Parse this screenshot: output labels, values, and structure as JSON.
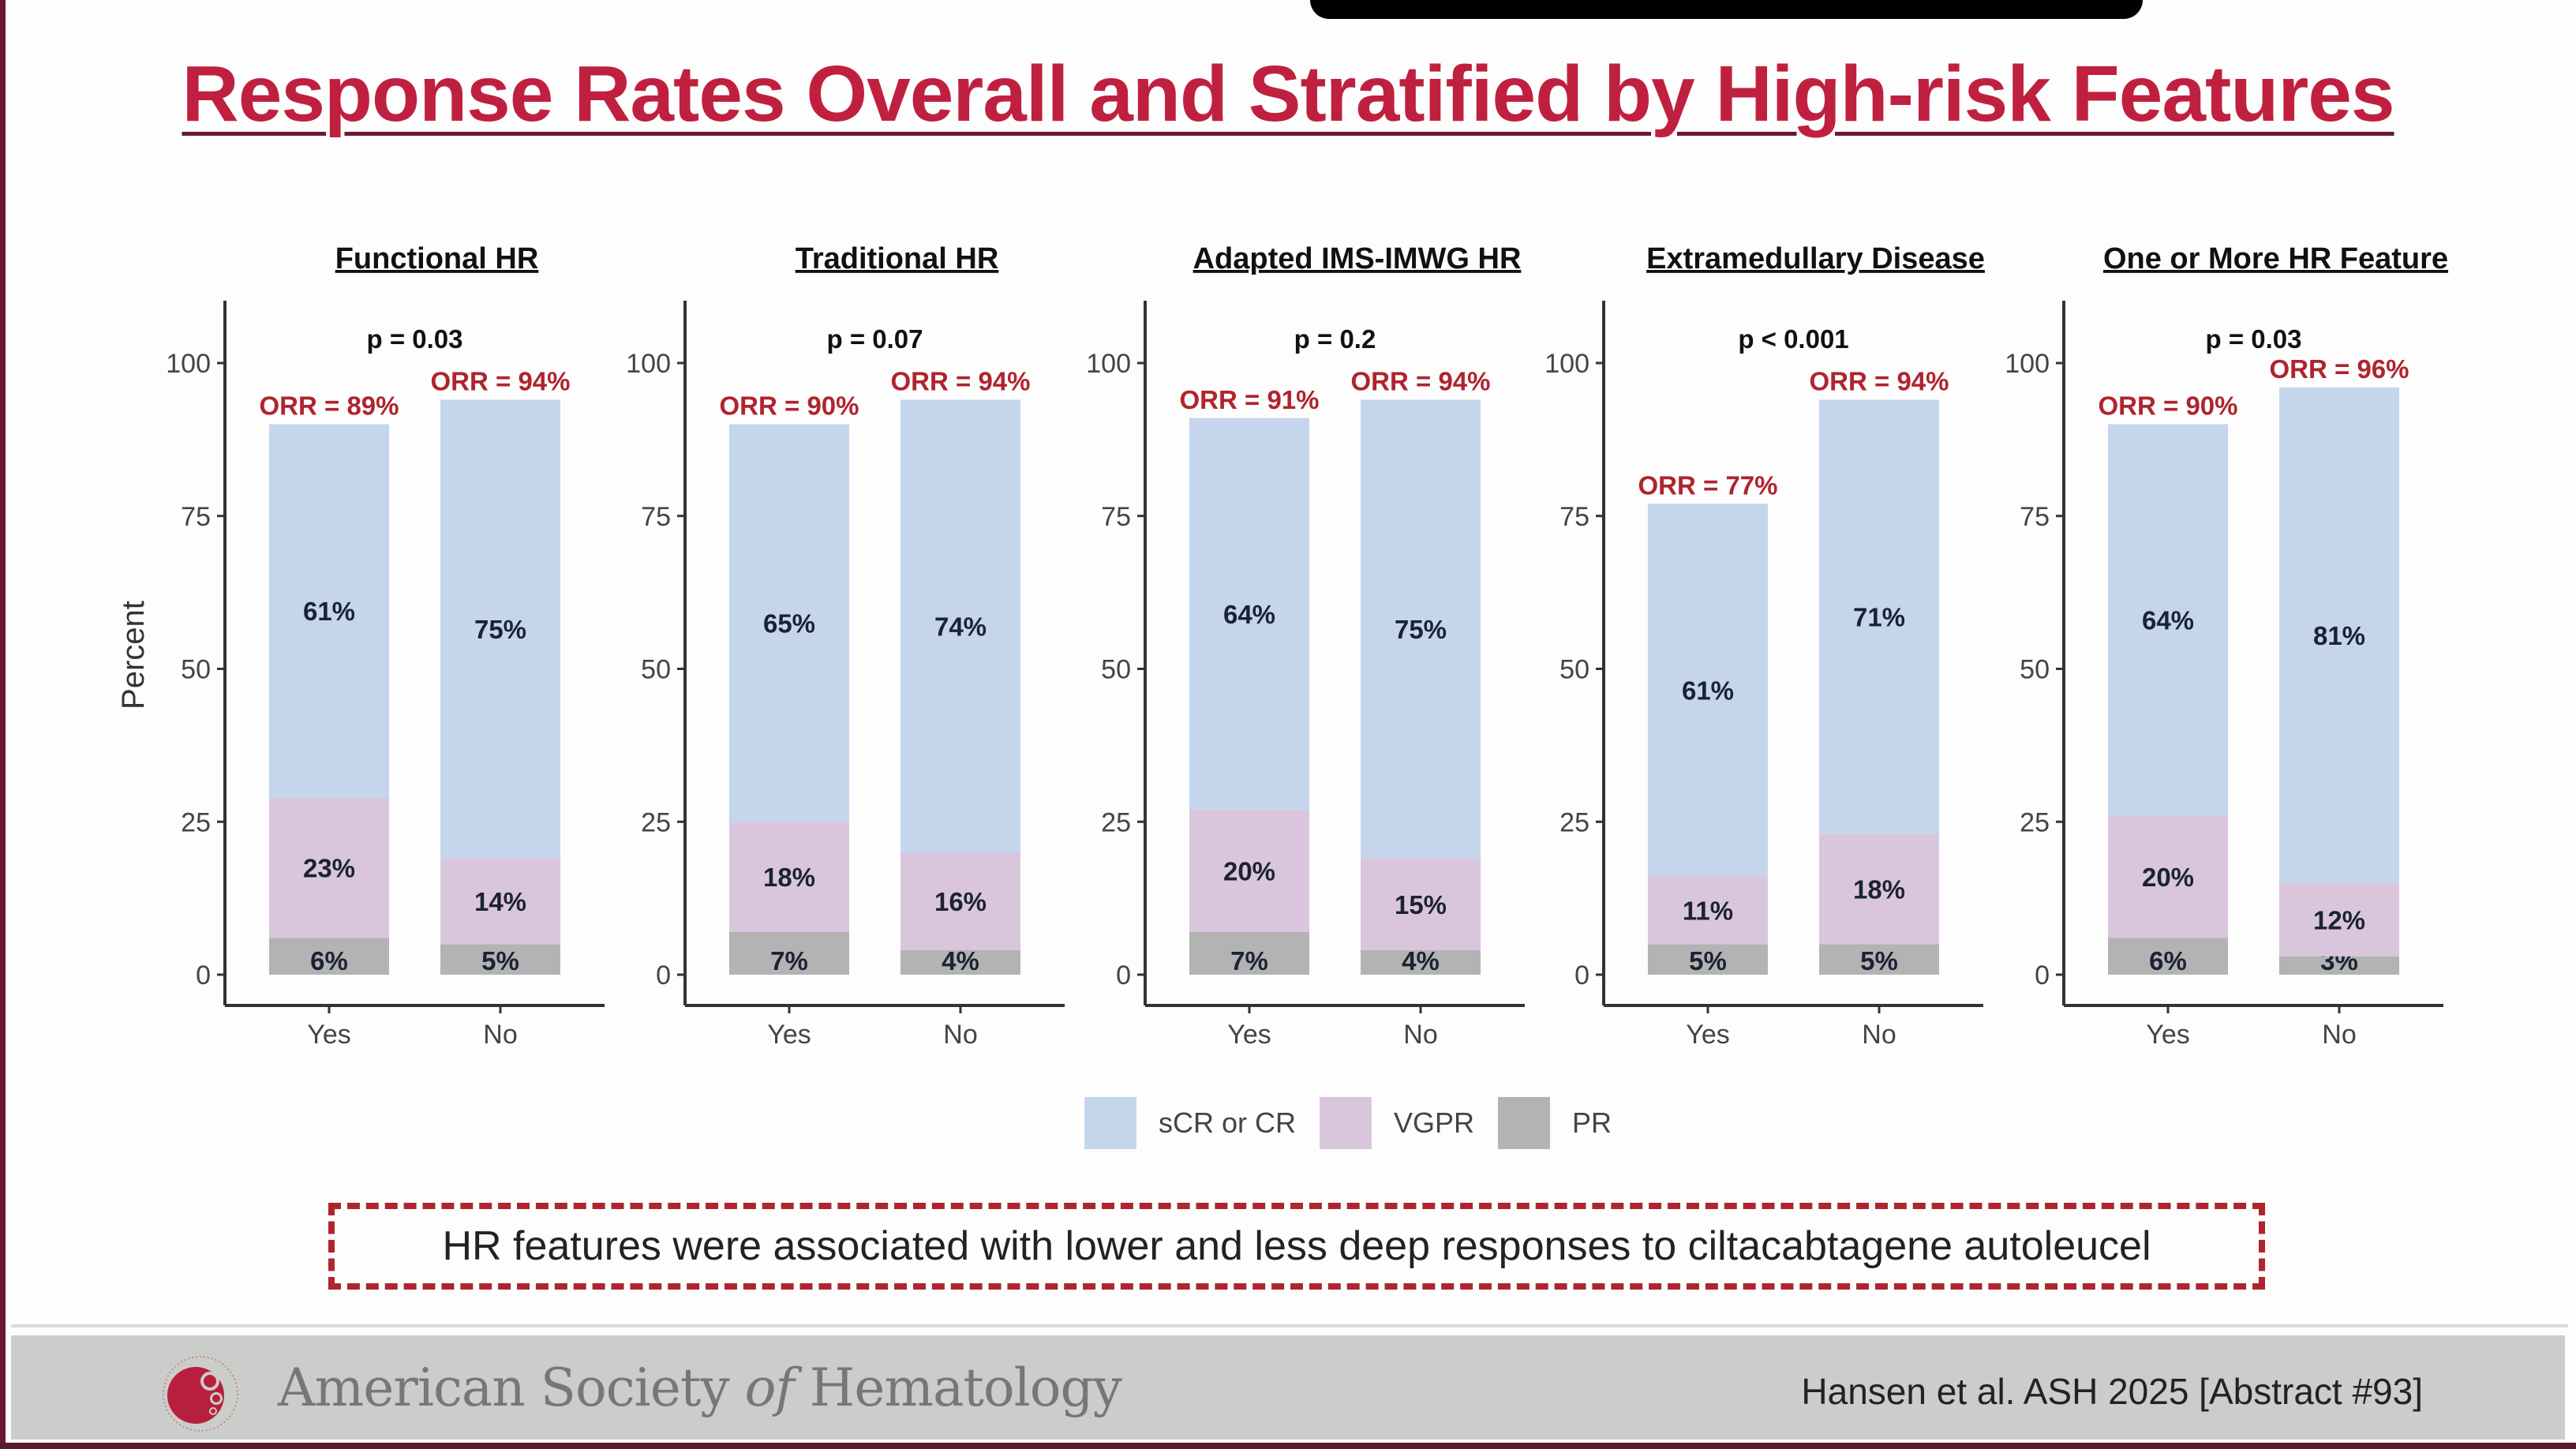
{
  "slide": {
    "title": "Response Rates Overall and Stratified by High-risk Features",
    "callout": "HR features were associated with lower and less deep responses to ciltacabtagene autoleucel",
    "footer": {
      "org_name_part1": "American Society ",
      "org_name_italic": "of",
      "org_name_part2": " Hematology",
      "logo_icon": "ash-logo-icon",
      "citation": "Hansen et al. ASH 2025 [Abstract #93]"
    },
    "colors": {
      "title": "#c0203f",
      "orr_label": "#b0242e",
      "callout_border": "#b0242e",
      "sCR_or_CR": "#c5d5ec",
      "VGPR": "#d9c6dd",
      "PR": "#b2b3b2"
    }
  },
  "chart_data": {
    "type": "bar",
    "stacked": true,
    "ylabel": "Percent",
    "ylim": [
      0,
      100
    ],
    "yticks": [
      0,
      25,
      50,
      75,
      100
    ],
    "categories": [
      "Yes",
      "No"
    ],
    "legend": {
      "position": "bottom",
      "entries": [
        "sCR or CR",
        "VGPR",
        "PR"
      ]
    },
    "series_order_bottom_to_top": [
      "PR",
      "VGPR",
      "sCR or CR"
    ],
    "panels": [
      {
        "title": "Functional HR",
        "p_value": "p = 0.03",
        "groups": [
          {
            "category": "Yes",
            "orr_label": "ORR = 89%",
            "orr": 89,
            "PR": 6,
            "VGPR": 23,
            "sCR or CR": 61
          },
          {
            "category": "No",
            "orr_label": "ORR = 94%",
            "orr": 94,
            "PR": 5,
            "VGPR": 14,
            "sCR or CR": 75
          }
        ]
      },
      {
        "title": "Traditional HR",
        "p_value": "p = 0.07",
        "groups": [
          {
            "category": "Yes",
            "orr_label": "ORR = 90%",
            "orr": 90,
            "PR": 7,
            "VGPR": 18,
            "sCR or CR": 65
          },
          {
            "category": "No",
            "orr_label": "ORR = 94%",
            "orr": 94,
            "PR": 4,
            "VGPR": 16,
            "sCR or CR": 74
          }
        ]
      },
      {
        "title": "Adapted IMS-IMWG HR",
        "p_value": "p = 0.2",
        "groups": [
          {
            "category": "Yes",
            "orr_label": "ORR = 91%",
            "orr": 91,
            "PR": 7,
            "VGPR": 20,
            "sCR or CR": 64
          },
          {
            "category": "No",
            "orr_label": "ORR = 94%",
            "orr": 94,
            "PR": 4,
            "VGPR": 15,
            "sCR or CR": 75
          }
        ]
      },
      {
        "title": "Extramedullary Disease",
        "p_value": "p < 0.001",
        "groups": [
          {
            "category": "Yes",
            "orr_label": "ORR = 77%",
            "orr": 77,
            "PR": 5,
            "VGPR": 11,
            "sCR or CR": 61
          },
          {
            "category": "No",
            "orr_label": "ORR = 94%",
            "orr": 94,
            "PR": 5,
            "VGPR": 18,
            "sCR or CR": 71
          }
        ]
      },
      {
        "title": "One or More HR Feature",
        "p_value": "p = 0.03",
        "groups": [
          {
            "category": "Yes",
            "orr_label": "ORR = 90%",
            "orr": 90,
            "PR": 6,
            "VGPR": 20,
            "sCR or CR": 64
          },
          {
            "category": "No",
            "orr_label": "ORR = 96%",
            "orr": 96,
            "PR": 3,
            "VGPR": 12,
            "sCR or CR": 81
          }
        ]
      }
    ]
  }
}
